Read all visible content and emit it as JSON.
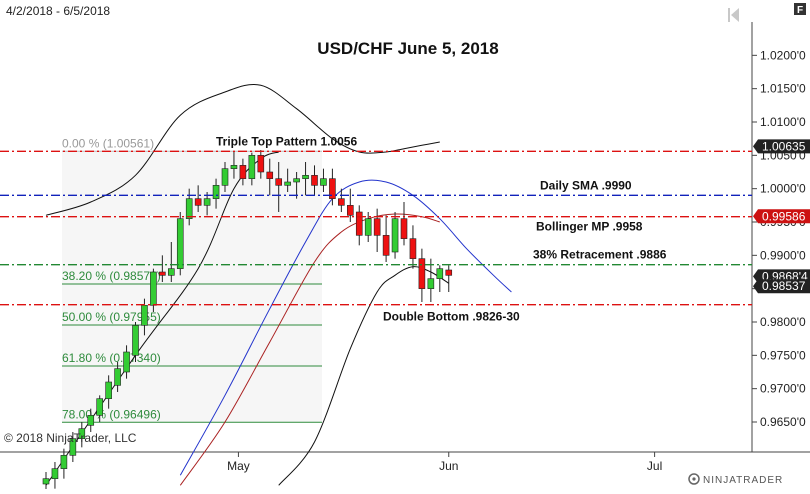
{
  "date_range": "4/2/2018 - 6/5/2018",
  "copyright": "© 2018 NinjaTrader, LLC",
  "logo_text": "NINJATRADER",
  "panel_button": "F",
  "colors": {
    "up": "#33cc33",
    "down": "#ee1111",
    "bollinger": "#111111",
    "sma": "#2233cc",
    "mid": "#aa2222",
    "fib": "#2e8b3c",
    "red_line": "#dd1111",
    "blue_line": "#1122bb",
    "green_line": "#228833"
  },
  "chart_data": {
    "type": "candlestick",
    "title": "USD/CHF June 5, 2018",
    "x_labels": [
      "May",
      "Jun",
      "Jul"
    ],
    "y_ticks": [
      "1.0200'0",
      "1.0150'0",
      "1.0100'0",
      "1.0050'0",
      "1.0000'0",
      "0.9950'0",
      "0.9900'0",
      "0.9850'0",
      "0.9800'0",
      "0.9750'0",
      "0.9700'0",
      "0.9650'0"
    ],
    "y_tick_values": [
      1.02,
      1.015,
      1.01,
      1.005,
      1.0,
      0.995,
      0.99,
      0.985,
      0.98,
      0.975,
      0.97,
      0.965
    ],
    "ylim": [
      0.9605,
      1.0235
    ],
    "grid": false,
    "candles": [
      {
        "date": "4/2",
        "o": 0.9557,
        "h": 0.9575,
        "l": 0.9535,
        "c": 0.9565
      },
      {
        "date": "4/3",
        "o": 0.9565,
        "h": 0.959,
        "l": 0.955,
        "c": 0.958
      },
      {
        "date": "4/4",
        "o": 0.958,
        "h": 0.961,
        "l": 0.9565,
        "c": 0.96
      },
      {
        "date": "4/5",
        "o": 0.96,
        "h": 0.9635,
        "l": 0.959,
        "c": 0.9625
      },
      {
        "date": "4/6",
        "o": 0.9625,
        "h": 0.965,
        "l": 0.9612,
        "c": 0.964
      },
      {
        "date": "4/9",
        "o": 0.9645,
        "h": 0.967,
        "l": 0.9635,
        "c": 0.966
      },
      {
        "date": "4/10",
        "o": 0.966,
        "h": 0.969,
        "l": 0.965,
        "c": 0.9685
      },
      {
        "date": "4/11",
        "o": 0.9685,
        "h": 0.972,
        "l": 0.967,
        "c": 0.971
      },
      {
        "date": "4/12",
        "o": 0.9705,
        "h": 0.974,
        "l": 0.9695,
        "c": 0.973
      },
      {
        "date": "4/13",
        "o": 0.9725,
        "h": 0.9765,
        "l": 0.9715,
        "c": 0.9755
      },
      {
        "date": "4/16",
        "o": 0.975,
        "h": 0.98,
        "l": 0.974,
        "c": 0.9795
      },
      {
        "date": "4/17",
        "o": 0.9795,
        "h": 0.9835,
        "l": 0.978,
        "c": 0.9825
      },
      {
        "date": "4/18",
        "o": 0.9825,
        "h": 0.988,
        "l": 0.9815,
        "c": 0.9875
      },
      {
        "date": "4/19",
        "o": 0.9875,
        "h": 0.99,
        "l": 0.986,
        "c": 0.987
      },
      {
        "date": "4/20",
        "o": 0.987,
        "h": 0.992,
        "l": 0.986,
        "c": 0.988
      },
      {
        "date": "4/23",
        "o": 0.988,
        "h": 0.9965,
        "l": 0.987,
        "c": 0.9955
      },
      {
        "date": "4/24",
        "o": 0.9955,
        "h": 1.0,
        "l": 0.9945,
        "c": 0.9985
      },
      {
        "date": "4/25",
        "o": 0.9985,
        "h": 1.0005,
        "l": 0.9965,
        "c": 0.9975
      },
      {
        "date": "4/26",
        "o": 0.9975,
        "h": 0.9995,
        "l": 0.996,
        "c": 0.9985
      },
      {
        "date": "4/27",
        "o": 0.9985,
        "h": 1.0015,
        "l": 0.997,
        "c": 1.0005
      },
      {
        "date": "4/30",
        "o": 1.0005,
        "h": 1.004,
        "l": 0.9995,
        "c": 1.003
      },
      {
        "date": "5/1",
        "o": 1.003,
        "h": 1.0055,
        "l": 1.0015,
        "c": 1.0035
      },
      {
        "date": "5/2",
        "o": 1.0035,
        "h": 1.0045,
        "l": 1.0005,
        "c": 1.0015
      },
      {
        "date": "5/3",
        "o": 1.0015,
        "h": 1.0054,
        "l": 1.0005,
        "c": 1.005
      },
      {
        "date": "5/4",
        "o": 1.005,
        "h": 1.0058,
        "l": 1.0015,
        "c": 1.0025
      },
      {
        "date": "5/7",
        "o": 1.0025,
        "h": 1.0045,
        "l": 0.999,
        "c": 1.0015
      },
      {
        "date": "5/8",
        "o": 1.0015,
        "h": 1.004,
        "l": 0.9965,
        "c": 1.0005
      },
      {
        "date": "5/9",
        "o": 1.0005,
        "h": 1.003,
        "l": 0.9995,
        "c": 1.001
      },
      {
        "date": "5/10",
        "o": 1.001,
        "h": 1.0025,
        "l": 0.9985,
        "c": 1.0015
      },
      {
        "date": "5/11",
        "o": 1.0015,
        "h": 1.004,
        "l": 0.999,
        "c": 1.002
      },
      {
        "date": "5/14",
        "o": 1.002,
        "h": 1.0035,
        "l": 0.999,
        "c": 1.0005
      },
      {
        "date": "5/15",
        "o": 1.0005,
        "h": 1.003,
        "l": 0.9995,
        "c": 1.0015
      },
      {
        "date": "5/16",
        "o": 1.0015,
        "h": 1.003,
        "l": 0.9975,
        "c": 0.9985
      },
      {
        "date": "5/17",
        "o": 0.9985,
        "h": 1.0,
        "l": 0.9965,
        "c": 0.9975
      },
      {
        "date": "5/18",
        "o": 0.9975,
        "h": 1.0,
        "l": 0.995,
        "c": 0.996
      },
      {
        "date": "5/21",
        "o": 0.9965,
        "h": 0.9975,
        "l": 0.9915,
        "c": 0.993
      },
      {
        "date": "5/22",
        "o": 0.993,
        "h": 0.9965,
        "l": 0.992,
        "c": 0.9955
      },
      {
        "date": "5/23",
        "o": 0.9955,
        "h": 0.997,
        "l": 0.9905,
        "c": 0.993
      },
      {
        "date": "5/24",
        "o": 0.993,
        "h": 0.996,
        "l": 0.989,
        "c": 0.99
      },
      {
        "date": "5/25",
        "o": 0.9905,
        "h": 0.9965,
        "l": 0.9895,
        "c": 0.9955
      },
      {
        "date": "5/28",
        "o": 0.9955,
        "h": 0.998,
        "l": 0.9915,
        "c": 0.9925
      },
      {
        "date": "5/29",
        "o": 0.9925,
        "h": 0.9945,
        "l": 0.988,
        "c": 0.9895
      },
      {
        "date": "5/30",
        "o": 0.9895,
        "h": 0.991,
        "l": 0.983,
        "c": 0.985
      },
      {
        "date": "5/31",
        "o": 0.985,
        "h": 0.9895,
        "l": 0.983,
        "c": 0.9865
      },
      {
        "date": "6/1",
        "o": 0.9865,
        "h": 0.9885,
        "l": 0.9845,
        "c": 0.988
      },
      {
        "date": "6/4",
        "o": 0.9878,
        "h": 0.9885,
        "l": 0.9845,
        "c": 0.987
      }
    ],
    "bollinger_upper": [
      [
        0,
        0.996
      ],
      [
        5,
        0.998
      ],
      [
        10,
        1.002
      ],
      [
        15,
        1.011
      ],
      [
        20,
        1.0145
      ],
      [
        24,
        1.0155
      ],
      [
        28,
        1.012
      ],
      [
        32,
        1.0075
      ],
      [
        35,
        1.0055
      ],
      [
        38,
        1.0055
      ],
      [
        40,
        1.006
      ],
      [
        42,
        1.0065
      ],
      [
        44,
        1.007
      ]
    ],
    "bollinger_lower": [
      [
        26,
        0.9555
      ],
      [
        30,
        0.962
      ],
      [
        34,
        0.976
      ],
      [
        37,
        0.9845
      ],
      [
        39,
        0.987
      ],
      [
        41,
        0.9883
      ],
      [
        43,
        0.9875
      ],
      [
        45,
        0.9858
      ]
    ],
    "sma": [
      [
        15,
        0.957
      ],
      [
        20,
        0.969
      ],
      [
        25,
        0.982
      ],
      [
        29,
        0.992
      ],
      [
        32,
        0.9985
      ],
      [
        35,
        1.001
      ],
      [
        38,
        1.001
      ],
      [
        41,
        0.999
      ],
      [
        44,
        0.9955
      ],
      [
        47,
        0.991
      ],
      [
        50,
        0.987
      ],
      [
        52,
        0.9845
      ]
    ],
    "bollinger_mid": [
      [
        15,
        0.9555
      ],
      [
        20,
        0.965
      ],
      [
        25,
        0.977
      ],
      [
        30,
        0.989
      ],
      [
        33,
        0.9935
      ],
      [
        36,
        0.9955
      ],
      [
        39,
        0.9962
      ],
      [
        42,
        0.9958
      ],
      [
        44,
        0.995
      ]
    ],
    "trend_line": [
      [
        0,
        0.9555
      ],
      [
        10,
        0.975
      ],
      [
        17,
        0.988
      ],
      [
        21,
        1.0
      ],
      [
        24,
        1.0045
      ],
      [
        26,
        1.0055
      ]
    ],
    "fib": {
      "levels": [
        {
          "label": "0.00 % (1.00561)",
          "value": 1.00561
        },
        {
          "label": "38.20 % (0.98570)",
          "value": 0.9857
        },
        {
          "label": "50.00 % (0.97955)",
          "value": 0.97955
        },
        {
          "label": "61.80 % (0.97340)",
          "value": 0.9734
        },
        {
          "label": "78.00 % (0.96496)",
          "value": 0.96496
        }
      ]
    },
    "horizontal_lines": [
      {
        "label": "Triple Top Pattern 1.0056",
        "value": 1.0056,
        "color": "red",
        "style": "dash-dot"
      },
      {
        "label": "Daily SMA  .9990",
        "value": 0.999,
        "color": "blue",
        "style": "dash-dot"
      },
      {
        "label": "Bollinger MP .9958",
        "value": 0.9958,
        "color": "red",
        "style": "dash-dot"
      },
      {
        "label": "38% Retracement .9886",
        "value": 0.9886,
        "color": "green",
        "style": "dash-dot"
      },
      {
        "label": "Double Bottom .9826-30",
        "value": 0.9826,
        "color": "red",
        "style": "dash-dot"
      }
    ],
    "price_markers": [
      {
        "value": 1.00635,
        "label": "1.00635",
        "style": "dark"
      },
      {
        "value": 0.99586,
        "label": "0.99586",
        "style": "red"
      },
      {
        "value": 0.98684,
        "label": "0.9868'4",
        "style": "dark"
      },
      {
        "value": 0.98537,
        "label": "0.98537",
        "style": "dark"
      }
    ]
  }
}
